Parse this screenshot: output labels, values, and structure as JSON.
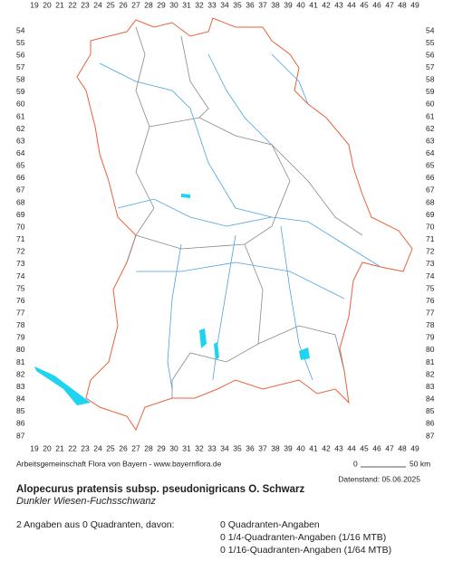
{
  "grid": {
    "columns": [
      19,
      20,
      21,
      22,
      23,
      24,
      25,
      26,
      27,
      28,
      29,
      30,
      31,
      32,
      33,
      34,
      35,
      36,
      37,
      38,
      39,
      40,
      41,
      42,
      43,
      44,
      45,
      46,
      47,
      48,
      49
    ],
    "rows": [
      54,
      55,
      56,
      57,
      58,
      59,
      60,
      61,
      62,
      63,
      64,
      65,
      66,
      67,
      68,
      69,
      70,
      71,
      72,
      73,
      74,
      75,
      76,
      77,
      78,
      79,
      80,
      81,
      82,
      83,
      84,
      85,
      86,
      87
    ]
  },
  "credit": "Arbeitsgemeinschaft Flora von Bayern - www.bayernflora.de",
  "scale": {
    "start": "0",
    "end": "50 km"
  },
  "date": "Datenstand: 05.06.2025",
  "header": {
    "title": "Alopecurus pratensis subsp. pseudonigricans O. Schwarz",
    "subtitle": "Dunkler Wiesen-Fuchsschwanz"
  },
  "summary": {
    "total": "2 Angaben aus 0 Quadranten, davon:",
    "counts": [
      "0 Quadranten-Angaben",
      "0 1/4-Quadranten-Angaben (1/16 MTB)",
      "0 1/16-Quadranten-Angaben (1/64 MTB)"
    ]
  }
}
